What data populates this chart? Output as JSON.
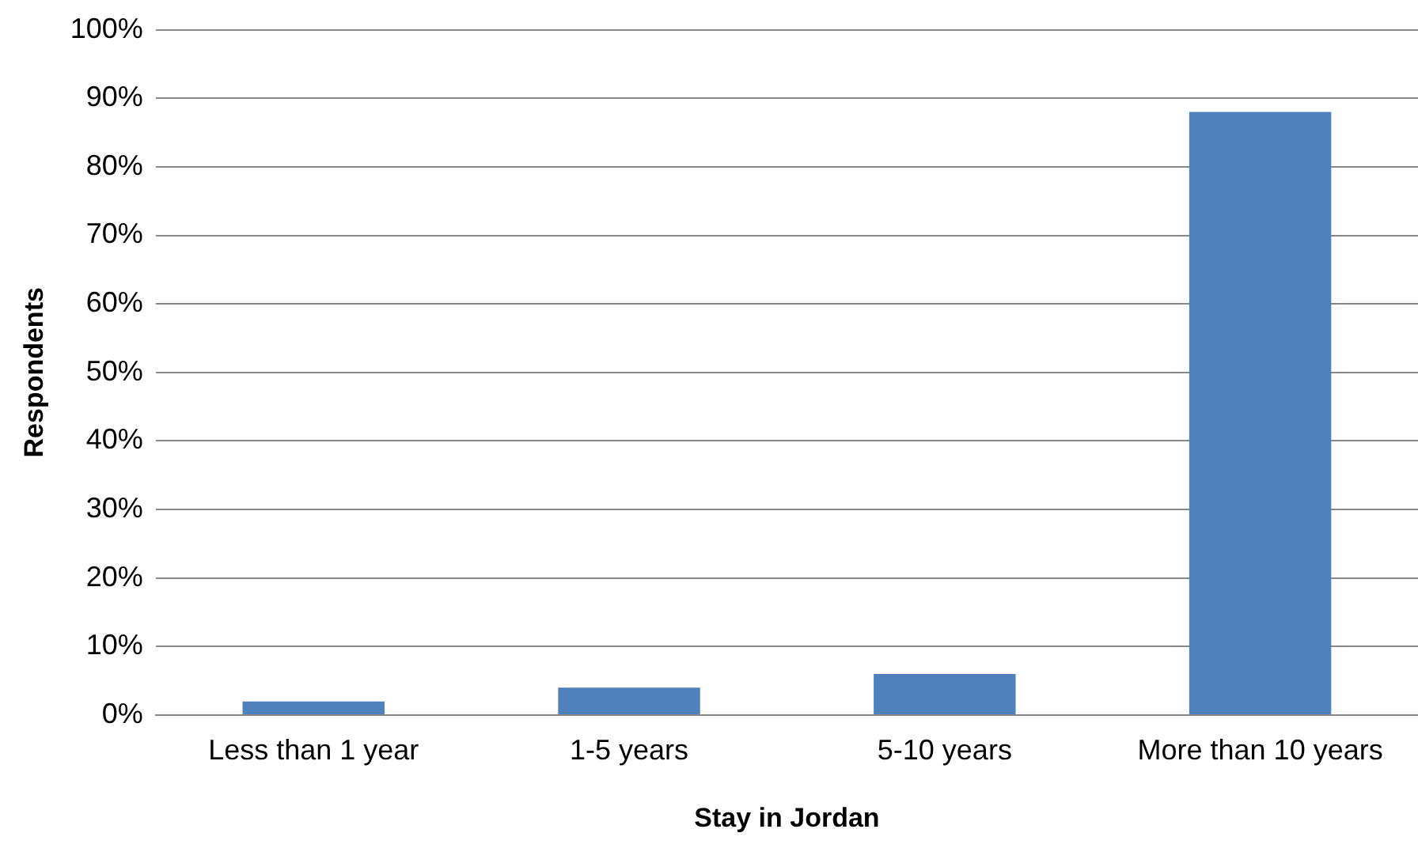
{
  "chart_data": {
    "type": "bar",
    "xlabel": "Stay in Jordan",
    "ylabel": "Respondents",
    "categories": [
      "Less than 1 year",
      "1-5 years",
      "5-10 years",
      "More than 10 years"
    ],
    "values": [
      2,
      4,
      6,
      88
    ],
    "color": "#4f81bd",
    "ylim": [
      0,
      100
    ],
    "yticks": [
      {
        "value": 0,
        "label": "0%"
      },
      {
        "value": 10,
        "label": "10%"
      },
      {
        "value": 20,
        "label": "20%"
      },
      {
        "value": 30,
        "label": "30%"
      },
      {
        "value": 40,
        "label": "40%"
      },
      {
        "value": 50,
        "label": "50%"
      },
      {
        "value": 60,
        "label": "60%"
      },
      {
        "value": 70,
        "label": "70%"
      },
      {
        "value": 80,
        "label": "80%"
      },
      {
        "value": 90,
        "label": "90%"
      },
      {
        "value": 100,
        "label": "100%"
      }
    ],
    "grid": "y",
    "legend": false
  }
}
